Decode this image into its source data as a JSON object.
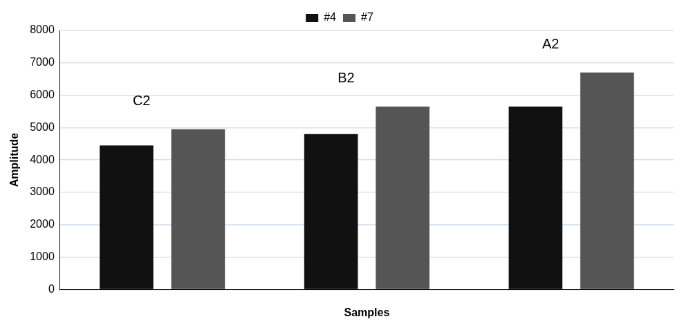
{
  "chart_data": {
    "type": "bar",
    "xlabel": "Samples",
    "ylabel": "Amplitude",
    "categories": [
      null,
      null,
      null
    ],
    "series": [
      {
        "name": "#4",
        "color": "#111111",
        "values": [
          4450,
          4800,
          5650
        ]
      },
      {
        "name": "#7",
        "color": "#555555",
        "values": [
          4950,
          5650,
          6700
        ]
      }
    ],
    "ylim": [
      0,
      8000
    ],
    "yticks": [
      0,
      1000,
      2000,
      3000,
      4000,
      5000,
      6000,
      7000,
      8000
    ],
    "grid": "y",
    "legend": "top",
    "annotations": [
      "C2",
      "B2",
      "A2"
    ]
  }
}
